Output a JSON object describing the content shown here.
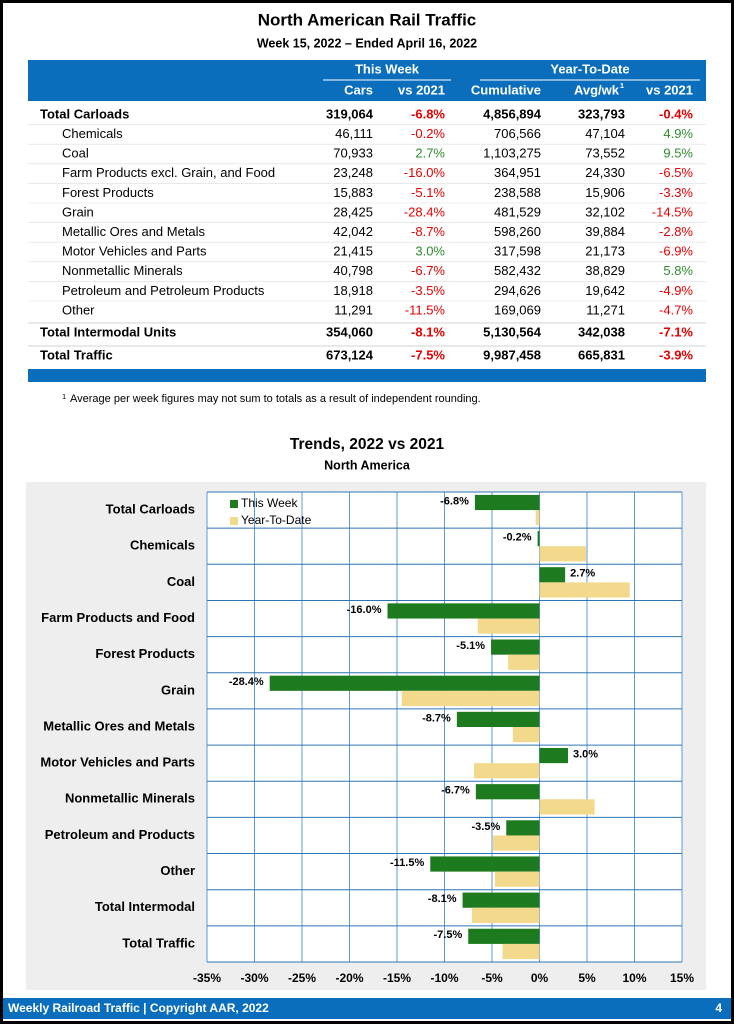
{
  "header": {
    "title": "North American Rail Traffic",
    "subtitle": "Week 15, 2022 – Ended April 16, 2022"
  },
  "table": {
    "group_headers": [
      "This Week",
      "Year-To-Date"
    ],
    "columns": [
      "Cars",
      "vs 2021",
      "Cumulative",
      "Avg/wk",
      "vs 2021"
    ],
    "avg_note": "1",
    "bold_rows": [
      0,
      11,
      12
    ],
    "colors": {
      "negative": "#e60000",
      "positive": "#2e8b2e"
    },
    "rows": [
      [
        "Total Carloads",
        "319,064",
        "-6.8%",
        "4,856,894",
        "323,793",
        "-0.4%"
      ],
      [
        "Chemicals",
        "46,111",
        "-0.2%",
        "706,566",
        "47,104",
        "4.9%"
      ],
      [
        "Coal",
        "70,933",
        "2.7%",
        "1,103,275",
        "73,552",
        "9.5%"
      ],
      [
        "Farm Products excl. Grain, and Food",
        "23,248",
        "-16.0%",
        "364,951",
        "24,330",
        "-6.5%"
      ],
      [
        "Forest Products",
        "15,883",
        "-5.1%",
        "238,588",
        "15,906",
        "-3.3%"
      ],
      [
        "Grain",
        "28,425",
        "-28.4%",
        "481,529",
        "32,102",
        "-14.5%"
      ],
      [
        "Metallic Ores and Metals",
        "42,042",
        "-8.7%",
        "598,260",
        "39,884",
        "-2.8%"
      ],
      [
        "Motor Vehicles and Parts",
        "21,415",
        "3.0%",
        "317,598",
        "21,173",
        "-6.9%"
      ],
      [
        "Nonmetallic Minerals",
        "40,798",
        "-6.7%",
        "582,432",
        "38,829",
        "5.8%"
      ],
      [
        "Petroleum and Petroleum Products",
        "18,918",
        "-3.5%",
        "294,626",
        "19,642",
        "-4.9%"
      ],
      [
        "Other",
        "11,291",
        "-11.5%",
        "169,069",
        "11,271",
        "-4.7%"
      ],
      [
        "Total Intermodal Units",
        "354,060",
        "-8.1%",
        "5,130,564",
        "342,038",
        "-7.1%"
      ],
      [
        "Total Traffic",
        "673,124",
        "-7.5%",
        "9,987,458",
        "665,831",
        "-3.9%"
      ]
    ]
  },
  "footnote": {
    "marker": "1",
    "text": "Average per week figures may not sum to totals as a result of independent rounding."
  },
  "chart_data": {
    "type": "hbar",
    "title": "Trends, 2022 vs 2021",
    "subtitle": "North America",
    "categories": [
      "Total Carloads",
      "Chemicals",
      "Coal",
      "Farm Products and Food",
      "Forest Products",
      "Grain",
      "Metallic Ores and Metals",
      "Motor Vehicles and Parts",
      "Nonmetallic Minerals",
      "Petroleum and Products",
      "Other",
      "Total Intermodal",
      "Total Traffic"
    ],
    "series": [
      {
        "name": "This Week",
        "color": "#1e7a1e",
        "values": [
          -6.8,
          -0.2,
          2.7,
          -16.0,
          -5.1,
          -28.4,
          -8.7,
          3.0,
          -6.7,
          -3.5,
          -11.5,
          -8.1,
          -7.5
        ],
        "value_labels": [
          "-6.8%",
          "-0.2%",
          "2.7%",
          "-16.0%",
          "-5.1%",
          "-28.4%",
          "-8.7%",
          "3.0%",
          "-6.7%",
          "-3.5%",
          "-11.5%",
          "-8.1%",
          "-7.5%"
        ]
      },
      {
        "name": "Year-To-Date",
        "color": "#f2d98c",
        "values": [
          -0.4,
          4.9,
          9.5,
          -6.5,
          -3.3,
          -14.5,
          -2.8,
          -6.9,
          5.8,
          -4.9,
          -4.7,
          -7.1,
          -3.9
        ]
      }
    ],
    "xlim": [
      -35,
      15
    ],
    "xticks": [
      {
        "value": -35,
        "label": "-35%"
      },
      {
        "value": -30,
        "label": "-30%"
      },
      {
        "value": -25,
        "label": "-25%"
      },
      {
        "value": -20,
        "label": "-20%"
      },
      {
        "value": -15,
        "label": "-15%"
      },
      {
        "value": -10,
        "label": "-10%"
      },
      {
        "value": -5,
        "label": "-5%"
      },
      {
        "value": 0,
        "label": "0%"
      },
      {
        "value": 5,
        "label": "5%"
      },
      {
        "value": 10,
        "label": "10%"
      },
      {
        "value": 15,
        "label": "15%"
      }
    ],
    "grid": true,
    "legend": "top-left"
  },
  "footer": {
    "left": "Weekly Railroad Traffic | Copyright AAR, 2022",
    "page": "4"
  }
}
